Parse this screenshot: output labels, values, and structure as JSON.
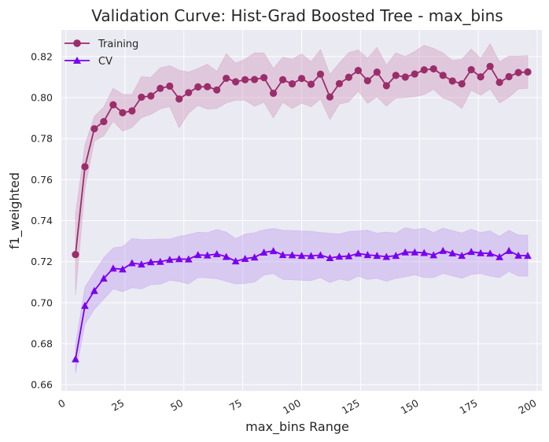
{
  "chart_data": {
    "type": "line",
    "title": "Validation Curve: Hist-Grad Boosted Tree - max_bins",
    "xlabel": "max_bins Range",
    "ylabel": "f1_weighted",
    "xlim": [
      -2,
      202
    ],
    "ylim": [
      0.657,
      0.833
    ],
    "xticks": [
      0,
      25,
      50,
      75,
      100,
      125,
      150,
      175,
      200
    ],
    "yticks": [
      0.66,
      0.68,
      0.7,
      0.72,
      0.74,
      0.76,
      0.78,
      0.8,
      0.82
    ],
    "grid": true,
    "legend_position": "top-left",
    "x": [
      4,
      8,
      12,
      16,
      20,
      24,
      28,
      32,
      36,
      40,
      44,
      48,
      52,
      56,
      60,
      64,
      68,
      72,
      76,
      80,
      84,
      88,
      92,
      96,
      100,
      104,
      108,
      112,
      116,
      120,
      124,
      128,
      132,
      136,
      140,
      144,
      148,
      152,
      156,
      160,
      164,
      168,
      172,
      176,
      180,
      184,
      188,
      192,
      196
    ],
    "series": [
      {
        "name": "Training",
        "color": "#9b2d6b",
        "band_color": "#d4a0c0",
        "marker": "circle",
        "values": [
          0.7235,
          0.7663,
          0.7848,
          0.7883,
          0.7965,
          0.7926,
          0.7935,
          0.8002,
          0.8008,
          0.8045,
          0.8056,
          0.7993,
          0.8024,
          0.8052,
          0.8053,
          0.8037,
          0.8094,
          0.8077,
          0.8087,
          0.8088,
          0.8097,
          0.8021,
          0.8087,
          0.8067,
          0.8093,
          0.8065,
          0.8114,
          0.8003,
          0.8068,
          0.8099,
          0.8132,
          0.8082,
          0.8124,
          0.8058,
          0.8108,
          0.81,
          0.8115,
          0.8135,
          0.814,
          0.8108,
          0.8081,
          0.8067,
          0.8136,
          0.8101,
          0.8152,
          0.8074,
          0.8102,
          0.8122,
          0.8125
        ],
        "std": [
          0.0195,
          0.0105,
          0.006,
          0.007,
          0.008,
          0.009,
          0.008,
          0.01,
          0.009,
          0.01,
          0.01,
          0.014,
          0.01,
          0.009,
          0.011,
          0.009,
          0.012,
          0.009,
          0.01,
          0.013,
          0.012,
          0.012,
          0.011,
          0.012,
          0.012,
          0.011,
          0.012,
          0.011,
          0.01,
          0.012,
          0.01,
          0.011,
          0.012,
          0.01,
          0.011,
          0.01,
          0.011,
          0.012,
          0.01,
          0.011,
          0.01,
          0.012,
          0.01,
          0.009,
          0.011,
          0.01,
          0.01,
          0.008,
          0.008
        ]
      },
      {
        "name": "CV",
        "color": "#7a00ee",
        "band_color": "#c3a2f0",
        "marker": "triangle",
        "values": [
          0.6725,
          0.6985,
          0.7058,
          0.7118,
          0.7167,
          0.7163,
          0.7193,
          0.7187,
          0.7198,
          0.72,
          0.721,
          0.7213,
          0.7212,
          0.7233,
          0.7231,
          0.7237,
          0.7224,
          0.7202,
          0.7214,
          0.7221,
          0.7245,
          0.7252,
          0.7233,
          0.7232,
          0.7229,
          0.7228,
          0.7232,
          0.7218,
          0.7225,
          0.7227,
          0.724,
          0.7233,
          0.7229,
          0.7224,
          0.7229,
          0.7246,
          0.7246,
          0.7243,
          0.7232,
          0.7253,
          0.7241,
          0.7229,
          0.7248,
          0.7242,
          0.724,
          0.7223,
          0.7253,
          0.723,
          0.7229
        ],
        "std": [
          0.007,
          0.009,
          0.009,
          0.01,
          0.01,
          0.011,
          0.012,
          0.012,
          0.011,
          0.011,
          0.01,
          0.011,
          0.012,
          0.011,
          0.011,
          0.012,
          0.012,
          0.011,
          0.012,
          0.012,
          0.011,
          0.011,
          0.012,
          0.012,
          0.012,
          0.012,
          0.011,
          0.012,
          0.011,
          0.012,
          0.011,
          0.012,
          0.011,
          0.012,
          0.011,
          0.012,
          0.011,
          0.012,
          0.011,
          0.011,
          0.011,
          0.011,
          0.011,
          0.01,
          0.011,
          0.01,
          0.01,
          0.01,
          0.01
        ]
      }
    ]
  },
  "colors": {
    "plot_background": "#eaeaf2",
    "grid": "#ffffff",
    "text": "#262626"
  }
}
